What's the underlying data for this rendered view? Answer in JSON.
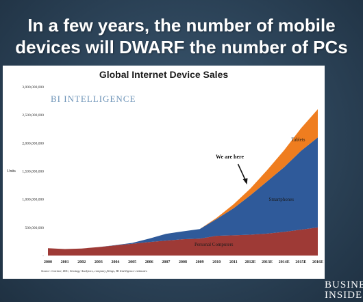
{
  "headline": {
    "line1": "In a few years, the number of mobile",
    "line2": "devices will DWARF the number of PCs"
  },
  "chart_data": {
    "type": "area",
    "title": "Global Internet Device Sales",
    "brand": "BI INTELLIGENCE",
    "ylabel": "Units",
    "xlabel": "",
    "ylim": [
      0,
      3000000000
    ],
    "y_ticks": [
      "3,000,000,000",
      "2,500,000,000",
      "2,000,000,000",
      "1,500,000,000",
      "1,000,000,000",
      "500,000,000",
      "-"
    ],
    "categories": [
      "2000",
      "2001",
      "2002",
      "2003",
      "2004",
      "2005",
      "2006",
      "2007",
      "2008",
      "2009",
      "2010",
      "2011",
      "2012E",
      "2013E",
      "2014E",
      "2015E",
      "2016E"
    ],
    "stacked": true,
    "series": [
      {
        "name": "Personal Computers",
        "color": "#9e3a36",
        "values": [
          130000000,
          115000000,
          125000000,
          150000000,
          180000000,
          210000000,
          240000000,
          265000000,
          290000000,
          300000000,
          350000000,
          360000000,
          370000000,
          390000000,
          420000000,
          460000000,
          500000000
        ]
      },
      {
        "name": "Smartphones",
        "color": "#2f5a9a",
        "values": [
          0,
          0,
          0,
          0,
          5000000,
          15000000,
          60000000,
          120000000,
          140000000,
          170000000,
          300000000,
          480000000,
          700000000,
          930000000,
          1150000000,
          1400000000,
          1600000000
        ]
      },
      {
        "name": "Tablets",
        "color": "#ef7d1f",
        "values": [
          0,
          0,
          0,
          0,
          0,
          0,
          0,
          0,
          0,
          0,
          20000000,
          70000000,
          120000000,
          200000000,
          300000000,
          400000000,
          500000000
        ]
      }
    ],
    "annotations": [
      {
        "text": "We are here",
        "x": "2012E"
      }
    ],
    "source": "Source: Gartner, IDC, Strategy Analytics, company filings, BI Intelligence estimates",
    "grid": false,
    "legend": "inline labels"
  },
  "logo": {
    "line1": "BUSINES",
    "line2": "INSIDE"
  }
}
